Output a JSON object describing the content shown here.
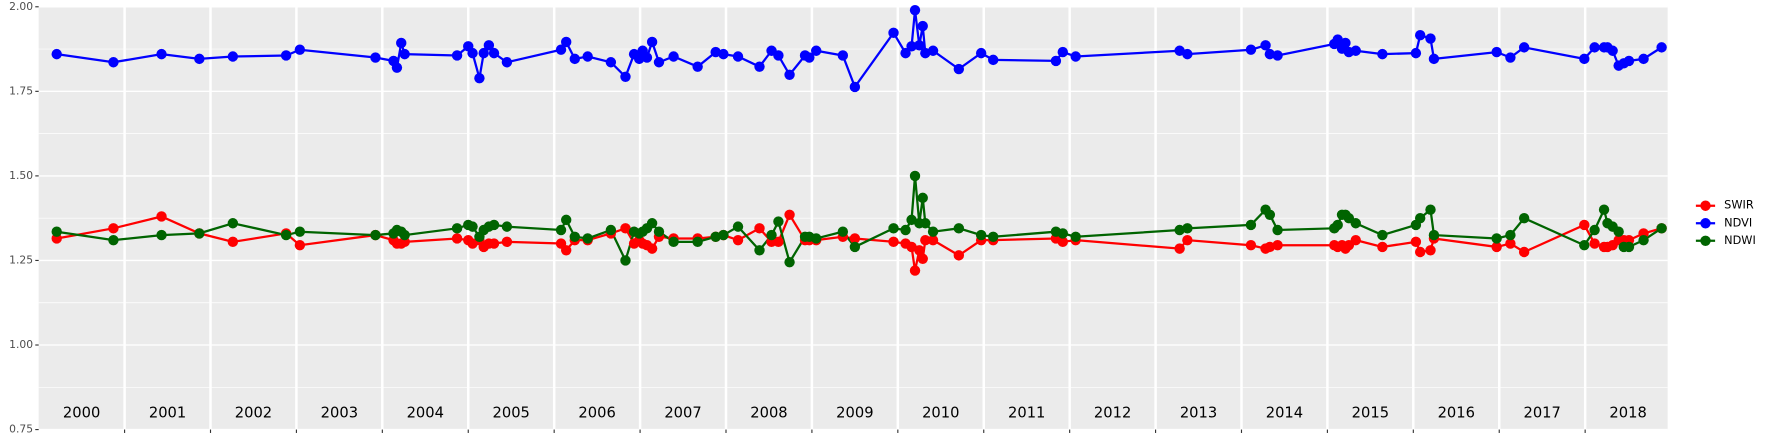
{
  "chart_data": {
    "type": "line",
    "x": [
      2000.21,
      2000.87,
      2001.43,
      2001.87,
      2002.26,
      2002.88,
      2003.04,
      2003.92,
      2004.13,
      2004.17,
      2004.22,
      2004.26,
      2004.87,
      2005.0,
      2005.05,
      2005.13,
      2005.18,
      2005.24,
      2005.3,
      2005.45,
      2006.08,
      2006.14,
      2006.24,
      2006.39,
      2006.66,
      2006.83,
      2006.93,
      2006.99,
      2007.03,
      2007.08,
      2007.14,
      2007.22,
      2007.39,
      2007.67,
      2007.88,
      2007.97,
      2008.14,
      2008.39,
      2008.53,
      2008.61,
      2008.74,
      2008.92,
      2008.97,
      2009.05,
      2009.36,
      2009.5,
      2009.95,
      2010.09,
      2010.16,
      2010.2,
      2010.25,
      2010.29,
      2010.32,
      2010.41,
      2010.71,
      2010.97,
      2011.11,
      2011.84,
      2011.92,
      2012.07,
      2013.28,
      2013.37,
      2014.11,
      2014.28,
      2014.33,
      2014.42,
      2015.08,
      2015.12,
      2015.17,
      2015.21,
      2015.25,
      2015.33,
      2015.64,
      2016.03,
      2016.08,
      2016.2,
      2016.24,
      2016.97,
      2017.13,
      2017.29,
      2017.99,
      2018.11,
      2018.22,
      2018.26,
      2018.32,
      2018.39,
      2018.45,
      2018.51,
      2018.68,
      2018.89
    ],
    "series": [
      {
        "name": "SWIR",
        "color": "#ff0000",
        "values": [
          1.315,
          1.345,
          1.38,
          1.33,
          1.305,
          1.33,
          1.295,
          1.325,
          1.31,
          1.3,
          1.3,
          1.305,
          1.315,
          1.31,
          1.3,
          1.31,
          1.29,
          1.3,
          1.3,
          1.305,
          1.3,
          1.28,
          1.31,
          1.31,
          1.33,
          1.345,
          1.3,
          1.31,
          1.3,
          1.295,
          1.285,
          1.32,
          1.315,
          1.315,
          1.32,
          1.325,
          1.31,
          1.345,
          1.305,
          1.305,
          1.385,
          1.31,
          1.31,
          1.31,
          1.32,
          1.315,
          1.305,
          1.3,
          1.29,
          1.22,
          1.28,
          1.255,
          1.31,
          1.31,
          1.265,
          1.31,
          1.31,
          1.315,
          1.305,
          1.31,
          1.285,
          1.31,
          1.295,
          1.285,
          1.29,
          1.295,
          1.295,
          1.29,
          1.295,
          1.285,
          1.295,
          1.31,
          1.29,
          1.305,
          1.275,
          1.28,
          1.315,
          1.29,
          1.3,
          1.275,
          1.355,
          1.3,
          1.29,
          1.29,
          1.295,
          1.31,
          1.31,
          1.31,
          1.33,
          1.345
        ]
      },
      {
        "name": "NDVI",
        "color": "#0000ff",
        "values": [
          1.86,
          1.836,
          1.86,
          1.846,
          1.853,
          1.856,
          1.873,
          1.85,
          1.84,
          1.82,
          1.893,
          1.86,
          1.856,
          1.883,
          1.863,
          1.789,
          1.863,
          1.886,
          1.863,
          1.836,
          1.873,
          1.896,
          1.846,
          1.853,
          1.836,
          1.793,
          1.86,
          1.846,
          1.87,
          1.85,
          1.896,
          1.836,
          1.853,
          1.823,
          1.866,
          1.86,
          1.853,
          1.823,
          1.87,
          1.856,
          1.799,
          1.856,
          1.85,
          1.87,
          1.856,
          1.763,
          1.923,
          1.863,
          1.883,
          1.99,
          1.886,
          1.943,
          1.863,
          1.87,
          1.816,
          1.863,
          1.843,
          1.84,
          1.866,
          1.853,
          1.87,
          1.86,
          1.873,
          1.886,
          1.86,
          1.856,
          1.89,
          1.903,
          1.876,
          1.893,
          1.866,
          1.87,
          1.86,
          1.863,
          1.916,
          1.906,
          1.846,
          1.866,
          1.85,
          1.88,
          1.846,
          1.88,
          1.88,
          1.88,
          1.87,
          1.826,
          1.833,
          1.84,
          1.846,
          1.88
        ]
      },
      {
        "name": "NDWI",
        "color": "#006400",
        "values": [
          1.335,
          1.31,
          1.325,
          1.33,
          1.36,
          1.325,
          1.335,
          1.325,
          1.33,
          1.34,
          1.335,
          1.325,
          1.345,
          1.355,
          1.35,
          1.32,
          1.34,
          1.35,
          1.355,
          1.35,
          1.34,
          1.37,
          1.32,
          1.315,
          1.34,
          1.25,
          1.335,
          1.33,
          1.335,
          1.345,
          1.36,
          1.335,
          1.305,
          1.305,
          1.32,
          1.325,
          1.35,
          1.28,
          1.325,
          1.365,
          1.245,
          1.32,
          1.32,
          1.315,
          1.335,
          1.29,
          1.345,
          1.34,
          1.37,
          1.5,
          1.36,
          1.435,
          1.36,
          1.335,
          1.345,
          1.325,
          1.32,
          1.335,
          1.33,
          1.32,
          1.34,
          1.345,
          1.355,
          1.4,
          1.385,
          1.34,
          1.345,
          1.355,
          1.385,
          1.385,
          1.375,
          1.36,
          1.325,
          1.355,
          1.375,
          1.4,
          1.325,
          1.315,
          1.325,
          1.375,
          1.295,
          1.34,
          1.4,
          1.36,
          1.35,
          1.335,
          1.29,
          1.29,
          1.31,
          1.345
        ]
      }
    ],
    "xlim": [
      2000,
      2018.96
    ],
    "ylim": [
      0.75,
      2.0
    ],
    "yticks": [
      0.75,
      {
        "value": 1.0,
        "label": "1.00"
      },
      1.25,
      {
        "value": 1.5,
        "label": "1.50"
      },
      1.75,
      {
        "value": 2.0,
        "label": "2.00"
      }
    ],
    "x_breaks": [
      2001,
      2002,
      2003,
      2004,
      2005,
      2006,
      2007,
      2008,
      2009,
      2010,
      2011,
      2012,
      2013,
      2014,
      2015,
      2016,
      2017,
      2018
    ],
    "year_labels": [
      {
        "value": 2000.5,
        "label": "2000"
      },
      {
        "value": 2001.5,
        "label": "2001"
      },
      {
        "value": 2002.5,
        "label": "2002"
      },
      {
        "value": 2003.5,
        "label": "2003"
      },
      {
        "value": 2004.5,
        "label": "2004"
      },
      {
        "value": 2005.5,
        "label": "2005"
      },
      {
        "value": 2006.5,
        "label": "2006"
      },
      {
        "value": 2007.5,
        "label": "2007"
      },
      {
        "value": 2008.5,
        "label": "2008"
      },
      {
        "value": 2009.5,
        "label": "2009"
      },
      {
        "value": 2010.5,
        "label": "2010"
      },
      {
        "value": 2011.5,
        "label": "2011"
      },
      {
        "value": 2012.5,
        "label": "2012"
      },
      {
        "value": 2013.5,
        "label": "2013"
      },
      {
        "value": 2014.5,
        "label": "2014"
      },
      {
        "value": 2015.5,
        "label": "2015"
      },
      {
        "value": 2016.5,
        "label": "2016"
      },
      {
        "value": 2017.5,
        "label": "2017"
      },
      {
        "value": 2018.5,
        "label": "2018"
      }
    ],
    "grid": true,
    "legend": "right"
  }
}
